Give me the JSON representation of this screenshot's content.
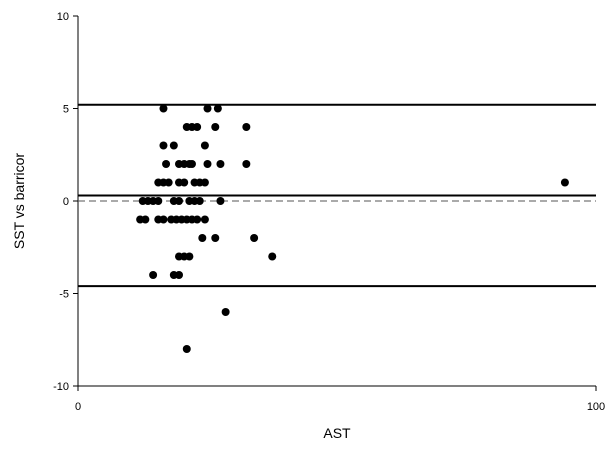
{
  "chart_data": {
    "type": "scatter",
    "title": "",
    "xlabel": "AST",
    "ylabel": "SST vs barricor",
    "xlim": [
      0,
      100
    ],
    "ylim": [
      -10,
      10
    ],
    "x_ticks": [
      0,
      100
    ],
    "y_ticks": [
      -10,
      -5,
      0,
      5,
      10
    ],
    "grid": false,
    "legend": "none",
    "reference_lines": [
      {
        "name": "upper-limit-line",
        "y": 5.2,
        "style": "solid"
      },
      {
        "name": "mean-line",
        "y": 0.3,
        "style": "solid"
      },
      {
        "name": "zero-line",
        "y": 0,
        "style": "dashed"
      },
      {
        "name": "lower-limit-line",
        "y": -4.6,
        "style": "solid"
      }
    ],
    "points": [
      {
        "x": 16.5,
        "y": 5
      },
      {
        "x": 25,
        "y": 5
      },
      {
        "x": 27,
        "y": 5
      },
      {
        "x": 21,
        "y": 4
      },
      {
        "x": 22,
        "y": 4
      },
      {
        "x": 23,
        "y": 4
      },
      {
        "x": 26.5,
        "y": 4
      },
      {
        "x": 32.5,
        "y": 4
      },
      {
        "x": 16.5,
        "y": 3
      },
      {
        "x": 18.5,
        "y": 3
      },
      {
        "x": 24.5,
        "y": 3
      },
      {
        "x": 17,
        "y": 2
      },
      {
        "x": 19.5,
        "y": 2
      },
      {
        "x": 20.5,
        "y": 2
      },
      {
        "x": 21.5,
        "y": 2
      },
      {
        "x": 22,
        "y": 2
      },
      {
        "x": 25,
        "y": 2
      },
      {
        "x": 27.5,
        "y": 2
      },
      {
        "x": 32.5,
        "y": 2
      },
      {
        "x": 15.5,
        "y": 1
      },
      {
        "x": 16.5,
        "y": 1
      },
      {
        "x": 17.5,
        "y": 1
      },
      {
        "x": 19.5,
        "y": 1
      },
      {
        "x": 20.5,
        "y": 1
      },
      {
        "x": 22.5,
        "y": 1
      },
      {
        "x": 23.5,
        "y": 1
      },
      {
        "x": 24.5,
        "y": 1
      },
      {
        "x": 94,
        "y": 1
      },
      {
        "x": 12.5,
        "y": 0
      },
      {
        "x": 13.5,
        "y": 0
      },
      {
        "x": 14.5,
        "y": 0
      },
      {
        "x": 15.5,
        "y": 0
      },
      {
        "x": 18.5,
        "y": 0
      },
      {
        "x": 19.5,
        "y": 0
      },
      {
        "x": 21.5,
        "y": 0
      },
      {
        "x": 22.5,
        "y": 0
      },
      {
        "x": 23.5,
        "y": 0
      },
      {
        "x": 27.5,
        "y": 0
      },
      {
        "x": 12,
        "y": -1
      },
      {
        "x": 13,
        "y": -1
      },
      {
        "x": 15.5,
        "y": -1
      },
      {
        "x": 16.5,
        "y": -1
      },
      {
        "x": 18,
        "y": -1
      },
      {
        "x": 19,
        "y": -1
      },
      {
        "x": 20,
        "y": -1
      },
      {
        "x": 21,
        "y": -1
      },
      {
        "x": 22,
        "y": -1
      },
      {
        "x": 23,
        "y": -1
      },
      {
        "x": 24.5,
        "y": -1
      },
      {
        "x": 24,
        "y": -2
      },
      {
        "x": 26.5,
        "y": -2
      },
      {
        "x": 34,
        "y": -2
      },
      {
        "x": 19.5,
        "y": -3
      },
      {
        "x": 20.5,
        "y": -3
      },
      {
        "x": 21.5,
        "y": -3
      },
      {
        "x": 37.5,
        "y": -3
      },
      {
        "x": 14.5,
        "y": -4
      },
      {
        "x": 18.5,
        "y": -4
      },
      {
        "x": 19.5,
        "y": -4
      },
      {
        "x": 28.5,
        "y": -6
      },
      {
        "x": 21,
        "y": -8
      }
    ]
  }
}
